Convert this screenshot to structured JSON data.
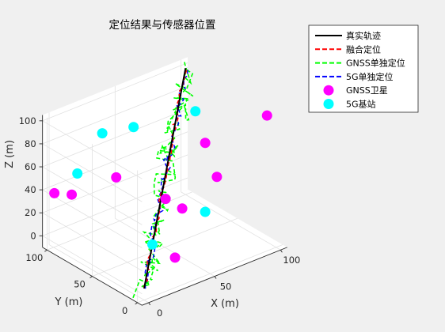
{
  "colors": {
    "figure_bg": "#f0f0f0",
    "axes_bg": "#ffffff",
    "grid": "#e1e1e1",
    "axis_line": "#262626",
    "true_path": "#000000",
    "fused": "#ff0000",
    "gnss_only": "#00ff00",
    "g5_only": "#0000ff",
    "gnss_sat": "#ff00ff",
    "bs_5g": "#00ffff"
  },
  "chart_data": {
    "type": "scatter",
    "title": "定位结果与传感器位置",
    "xlabel": "X (m)",
    "ylabel": "Y (m)",
    "zlabel": "Z (m)",
    "xlim": [
      0,
      100
    ],
    "ylim": [
      0,
      100
    ],
    "zlim": [
      0,
      100
    ],
    "xticks": [
      "0",
      "50",
      "100"
    ],
    "yticks": [
      "0",
      "50",
      "100"
    ],
    "zticks": [
      "0",
      "20",
      "40",
      "60",
      "80",
      "100"
    ],
    "grid": true,
    "legend_position": "top-right",
    "legend": [
      {
        "label": "真实轨迹",
        "style": "solid-line",
        "color": "#000000"
      },
      {
        "label": "融合定位",
        "style": "dashed-line",
        "color": "#ff0000"
      },
      {
        "label": "GNSS单独定位",
        "style": "dashed-line",
        "color": "#00ff00"
      },
      {
        "label": "5G单独定位",
        "style": "dashed-line",
        "color": "#0000ff"
      },
      {
        "label": "GNSS卫星",
        "style": "marker",
        "color": "#ff00ff"
      },
      {
        "label": "5G基站",
        "style": "marker",
        "color": "#00ffff"
      }
    ],
    "true_path": {
      "start": [
        0,
        0,
        0
      ],
      "end": [
        100,
        100,
        100
      ]
    },
    "gnss_satellites": [
      [
        -20,
        70,
        60
      ],
      [
        0,
        80,
        45
      ],
      [
        20,
        60,
        60
      ],
      [
        30,
        20,
        55
      ],
      [
        20,
        -5,
        20
      ],
      [
        70,
        60,
        10
      ],
      [
        110,
        80,
        10
      ],
      [
        60,
        20,
        90
      ],
      [
        100,
        10,
        100
      ]
    ],
    "bs_5g": [
      [
        -30,
        30,
        100
      ],
      [
        40,
        70,
        90
      ],
      [
        80,
        60,
        90
      ],
      [
        60,
        20,
        30
      ],
      [
        30,
        90,
        80
      ],
      [
        20,
        20,
        20
      ]
    ]
  }
}
